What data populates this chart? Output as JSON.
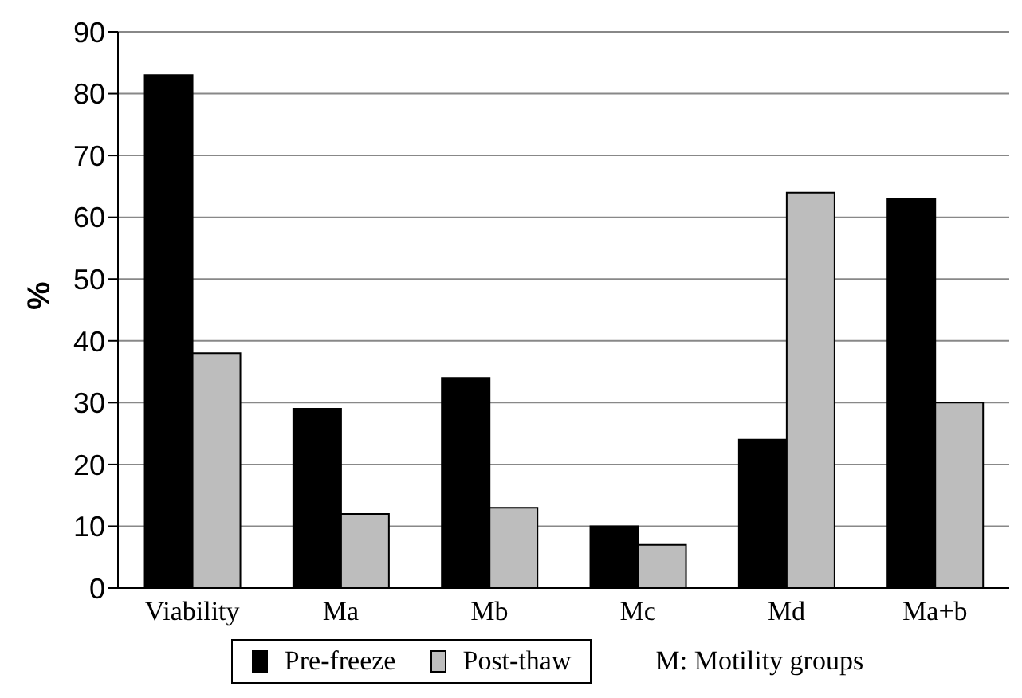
{
  "chart_data": {
    "type": "bar",
    "ylabel": "%",
    "categories": [
      "Viability",
      "Ma",
      "Mb",
      "Mc",
      "Md",
      "Ma+b"
    ],
    "series": [
      {
        "name": "Pre-freeze",
        "color": "#000000",
        "values": [
          83,
          29,
          34,
          10,
          24,
          63
        ]
      },
      {
        "name": "Post-thaw",
        "color": "#bdbdbd",
        "values": [
          38,
          12,
          13,
          7,
          64,
          30
        ]
      }
    ],
    "ylim": [
      0,
      90
    ],
    "yticks": [
      0,
      10,
      20,
      30,
      40,
      50,
      60,
      70,
      80,
      90
    ],
    "grid": "y",
    "legend": "bottom",
    "annotations": [
      "M: Motility groups"
    ]
  }
}
